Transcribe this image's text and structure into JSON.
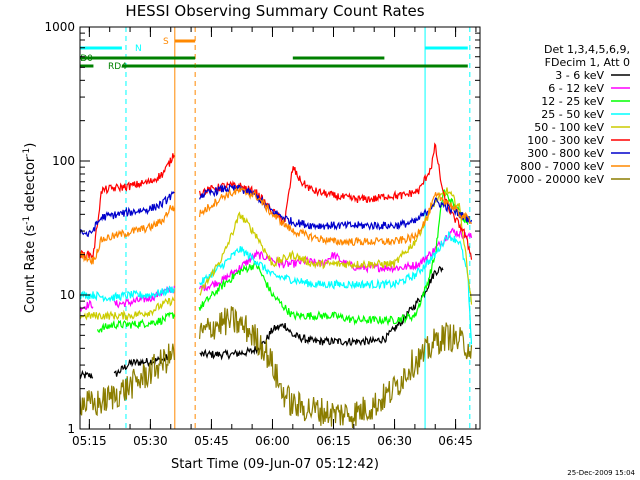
{
  "chart_data": {
    "type": "line",
    "title": "HESSI Observing Summary Count Rates",
    "xlabel": "Start Time (09-Jun-07 05:12:42)",
    "ylabel_main": "Count Rate (s",
    "ylabel_sup1": "-1",
    "ylabel_mid": " detector",
    "ylabel_sup2": "-1",
    "ylabel_end": ")",
    "yscale": "log",
    "ylim": [
      1,
      1000
    ],
    "xlim": [
      "05:12:42",
      "06:51:00"
    ],
    "x_ticks": [
      "05:15",
      "05:30",
      "05:45",
      "06:00",
      "06:15",
      "06:30",
      "06:45"
    ],
    "y_ticks": [
      "1",
      "10",
      "100",
      "1000"
    ],
    "timestamp": "25-Dec-2009 15:04",
    "legend": {
      "position": "right",
      "header": [
        "Det 1,3,4,5,6,9,",
        "FDecim 1, Att 0"
      ],
      "entries": [
        {
          "label": "3 - 6 keV",
          "color": "#000000"
        },
        {
          "label": "6 - 12 keV",
          "color": "#ff00ff"
        },
        {
          "label": "12 - 25 keV",
          "color": "#00ff00"
        },
        {
          "label": "25 - 50 keV",
          "color": "#00ffff"
        },
        {
          "label": "50 - 100 keV",
          "color": "#cccc00"
        },
        {
          "label": "100 - 300 keV",
          "color": "#ff0000"
        },
        {
          "label": "300 - 800 keV",
          "color": "#0000cc"
        },
        {
          "label": "800 - 7000 keV",
          "color": "#ff8800"
        },
        {
          "label": "7000 - 20000 keV",
          "color": "#8b7d00"
        }
      ]
    },
    "flag_labels": {
      "n": "N",
      "s": "S",
      "rd0": "RD0",
      "rd4": "RD4"
    },
    "flags": {
      "N": [
        [
          "05:12:42",
          "05:23:00"
        ],
        [
          "06:37:30",
          "06:48:00"
        ]
      ],
      "S": [
        [
          "05:36:00",
          "05:41:00"
        ]
      ],
      "RD0": [
        [
          "05:12:42",
          "05:41:00"
        ],
        [
          "06:05:00",
          "06:27:30"
        ]
      ],
      "RD4": [
        [
          "05:12:42",
          "05:16:00"
        ],
        [
          "05:23:00",
          "05:41:00"
        ],
        [
          "05:41:00",
          "06:48:00"
        ]
      ]
    },
    "markers": [
      {
        "time": "05:24:00",
        "color": "#00ffff",
        "style": "dashed"
      },
      {
        "time": "05:36:00",
        "color": "#ff8800",
        "style": "solid"
      },
      {
        "time": "05:41:00",
        "color": "#ff8800",
        "style": "dashed"
      },
      {
        "time": "06:37:30",
        "color": "#00ffff",
        "style": "solid"
      },
      {
        "time": "06:48:30",
        "color": "#00ffff",
        "style": "dashed"
      }
    ],
    "series": [
      {
        "name": "3 - 6 keV",
        "color": "#000000",
        "gaps": [
          [
            "05:16:00",
            "05:21:00"
          ],
          [
            "05:35:00",
            "05:42:00"
          ],
          [
            "06:42:00",
            "06:51:00"
          ]
        ],
        "x": [
          "05:12:42",
          "05:17:00",
          "05:21:00",
          "05:25:00",
          "05:30:00",
          "05:33:00",
          "05:35:00",
          "05:42:00",
          "05:50:00",
          "05:55:00",
          "05:58:00",
          "06:00:00",
          "06:03:00",
          "06:05:00",
          "06:10:00",
          "06:15:00",
          "06:20:00",
          "06:25:00",
          "06:28:00",
          "06:32:00",
          "06:37:00",
          "06:40:00",
          "06:42:00"
        ],
        "y": [
          2.5,
          2.5,
          2.5,
          3.1,
          3.2,
          3.3,
          3.5,
          3.6,
          3.6,
          3.8,
          4.4,
          5.5,
          6.0,
          5.0,
          4.5,
          4.5,
          4.5,
          4.5,
          4.8,
          6.5,
          10,
          15,
          16
        ]
      },
      {
        "name": "6 - 12 keV",
        "color": "#ff00ff",
        "gaps": [
          [
            "05:16:00",
            "05:21:00"
          ],
          [
            "05:36:00",
            "05:42:00"
          ]
        ],
        "x": [
          "05:12:42",
          "05:15:00",
          "05:21:00",
          "05:25:00",
          "05:30:00",
          "05:33:00",
          "05:35:00",
          "05:42:00",
          "05:48:00",
          "05:52:00",
          "05:56:00",
          "05:59:00",
          "06:02:00",
          "06:05:00",
          "06:08:00",
          "06:12:00",
          "06:15:00",
          "06:18:00",
          "06:21:00",
          "06:24:00",
          "06:28:00",
          "06:32:00",
          "06:36:00",
          "06:40:00",
          "06:44:00",
          "06:47:00",
          "06:49:00"
        ],
        "y": [
          8.0,
          8.5,
          8.5,
          8.8,
          9.5,
          10.5,
          11,
          11,
          13,
          16,
          20,
          19,
          17,
          17,
          18,
          17,
          20,
          17,
          16,
          16,
          16,
          16,
          17,
          22,
          30,
          28,
          27
        ]
      },
      {
        "name": "12 - 25 keV",
        "color": "#00ff00",
        "gaps": [
          [
            "05:36:00",
            "05:42:00"
          ]
        ],
        "x": [
          "05:17:00",
          "05:21:00",
          "05:25:00",
          "05:30:00",
          "05:33:00",
          "05:35:00",
          "05:42:00",
          "05:48:00",
          "05:52:00",
          "05:56:00",
          "06:00:00",
          "06:05:00",
          "06:10:00",
          "06:15:00",
          "06:20:00",
          "06:25:00",
          "06:30:00",
          "06:35:00",
          "06:38:00",
          "06:40:00",
          "06:42:00",
          "06:45:00",
          "06:48:00"
        ],
        "y": [
          5.5,
          6.0,
          6.0,
          6.2,
          6.5,
          7.0,
          8.0,
          12,
          15,
          17,
          10,
          7,
          7,
          7,
          6.5,
          6.5,
          6.5,
          7,
          12,
          20,
          60,
          45,
          35
        ]
      },
      {
        "name": "25 - 50 keV",
        "color": "#00ffff",
        "gaps": [
          [
            "05:36:00",
            "05:42:00"
          ]
        ],
        "x": [
          "05:12:42",
          "05:16:00",
          "05:20:00",
          "05:25:00",
          "05:30:00",
          "05:33:00",
          "05:35:00",
          "05:42:00",
          "05:48:00",
          "05:52:00",
          "05:56:00",
          "06:00:00",
          "06:05:00",
          "06:10:00",
          "06:15:00",
          "06:20:00",
          "06:25:00",
          "06:30:00",
          "06:35:00",
          "06:40:00",
          "06:43:00",
          "06:46:00",
          "06:48:00",
          "06:49:00"
        ],
        "y": [
          10,
          10,
          9.5,
          10,
          10,
          10.5,
          11,
          12,
          17,
          22,
          18,
          14,
          13,
          12,
          12,
          12,
          12,
          12,
          14,
          20,
          28,
          25,
          14,
          3.5
        ]
      },
      {
        "name": "50 - 100 keV",
        "color": "#cccc00",
        "gaps": [
          [
            "05:36:00",
            "05:42:00"
          ]
        ],
        "x": [
          "05:12:42",
          "05:15:00",
          "05:19:00",
          "05:25:00",
          "05:30:00",
          "05:33:00",
          "05:35:00",
          "05:42:00",
          "05:48:00",
          "05:52:00",
          "05:56:00",
          "06:00:00",
          "06:05:00",
          "06:10:00",
          "06:15:00",
          "06:20:00",
          "06:25:00",
          "06:30:00",
          "06:35:00",
          "06:40:00",
          "06:43:00",
          "06:46:00",
          "06:48:00",
          "06:49:00"
        ],
        "y": [
          7,
          7,
          7,
          7,
          7.5,
          8.5,
          9,
          10,
          20,
          40,
          28,
          17,
          20,
          17,
          17,
          17,
          17,
          17,
          25,
          50,
          60,
          45,
          15,
          8
        ]
      },
      {
        "name": "100 - 300 keV",
        "color": "#ff0000",
        "gaps": [
          [
            "05:36:00",
            "05:42:00"
          ]
        ],
        "x": [
          "05:12:42",
          "05:16:00",
          "05:18:00",
          "05:20:00",
          "05:25:00",
          "05:30:00",
          "05:33:00",
          "05:35:00",
          "05:36:00",
          "05:42:00",
          "05:48:00",
          "05:52:00",
          "05:56:00",
          "06:00:00",
          "06:03:00",
          "06:05:00",
          "06:07:00",
          "06:10:00",
          "06:15:00",
          "06:20:00",
          "06:25:00",
          "06:28:00",
          "06:32:00",
          "06:36:00",
          "06:39:00",
          "06:40:00",
          "06:42:00",
          "06:44:00",
          "06:47:00",
          "06:49:00"
        ],
        "y": [
          20,
          20,
          60,
          62,
          65,
          70,
          80,
          100,
          120,
          58,
          65,
          65,
          58,
          42,
          35,
          90,
          70,
          60,
          55,
          52,
          52,
          55,
          55,
          60,
          90,
          130,
          55,
          40,
          30,
          19
        ]
      },
      {
        "name": "300 - 800 keV",
        "color": "#0000cc",
        "gaps": [
          [
            "05:36:00",
            "05:42:00"
          ]
        ],
        "x": [
          "05:12:42",
          "05:15:00",
          "05:18:00",
          "05:22:00",
          "05:26:00",
          "05:30:00",
          "05:33:00",
          "05:35:00",
          "05:42:00",
          "05:48:00",
          "05:52:00",
          "05:56:00",
          "06:00:00",
          "06:05:00",
          "06:10:00",
          "06:15:00",
          "06:20:00",
          "06:25:00",
          "06:30:00",
          "06:35:00",
          "06:38:00",
          "06:40:00",
          "06:43:00",
          "06:46:00",
          "06:49:00"
        ],
        "y": [
          30,
          28,
          38,
          40,
          42,
          44,
          48,
          55,
          55,
          62,
          62,
          55,
          42,
          35,
          33,
          33,
          33,
          33,
          33,
          35,
          42,
          50,
          45,
          40,
          36
        ]
      },
      {
        "name": "800 - 7000 keV",
        "color": "#ff8800",
        "gaps": [
          [
            "05:36:00",
            "05:42:00"
          ]
        ],
        "x": [
          "05:12:42",
          "05:16:00",
          "05:18:00",
          "05:22:00",
          "05:26:00",
          "05:30:00",
          "05:33:00",
          "05:35:00",
          "05:42:00",
          "05:48:00",
          "05:52:00",
          "05:56:00",
          "06:00:00",
          "06:05:00",
          "06:10:00",
          "06:15:00",
          "06:20:00",
          "06:25:00",
          "06:30:00",
          "06:35:00",
          "06:38:00",
          "06:40:00",
          "06:43:00",
          "06:46:00",
          "06:49:00"
        ],
        "y": [
          20,
          18,
          26,
          28,
          30,
          32,
          36,
          45,
          40,
          55,
          60,
          55,
          40,
          30,
          27,
          25,
          25,
          25,
          25,
          27,
          38,
          55,
          50,
          40,
          36
        ]
      },
      {
        "name": "7000 - 20000 keV",
        "color": "#8b7d00",
        "gaps": [
          [
            "05:36:00",
            "05:42:00"
          ]
        ],
        "x": [
          "05:12:42",
          "05:16:00",
          "05:20:00",
          "05:24:00",
          "05:28:00",
          "05:32:00",
          "05:35:00",
          "05:42:00",
          "05:46:00",
          "05:50:00",
          "05:54:00",
          "05:58:00",
          "06:00:00",
          "06:02:00",
          "06:05:00",
          "06:10:00",
          "06:15:00",
          "06:20:00",
          "06:25:00",
          "06:30:00",
          "06:34:00",
          "06:37:00",
          "06:40:00",
          "06:43:00",
          "06:46:00",
          "06:49:00"
        ],
        "y": [
          1.6,
          1.5,
          1.7,
          2.0,
          2.4,
          3.0,
          3.5,
          5.0,
          6.0,
          6.5,
          5.5,
          4.0,
          3.0,
          2.0,
          1.5,
          1.4,
          1.3,
          1.3,
          1.5,
          2.0,
          3.0,
          3.5,
          4.5,
          5.0,
          4.5,
          4.0
        ]
      }
    ]
  }
}
